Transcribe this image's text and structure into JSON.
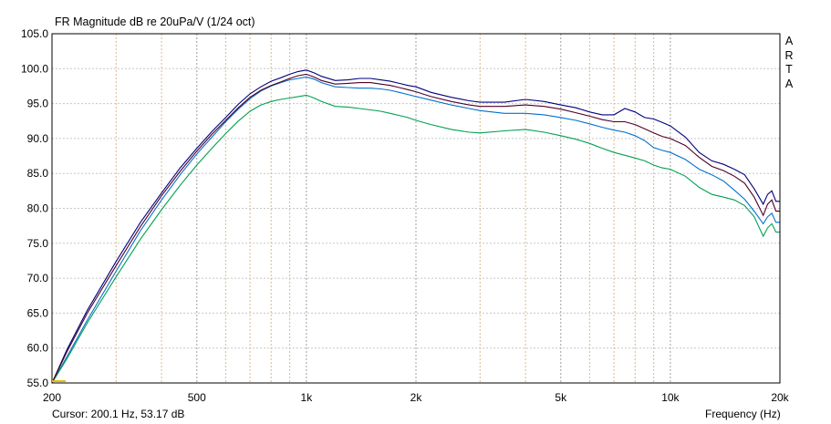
{
  "title": "FR Magnitude dB re 20uPa/V (1/24 oct)",
  "brand_letters": [
    "A",
    "R",
    "T",
    "A"
  ],
  "cursor_readout": "Cursor: 200.1 Hz, 53.17 dB",
  "chart_data": {
    "type": "line",
    "title": "FR Magnitude dB re 20uPa/V (1/24 oct)",
    "xlabel": "Frequency (Hz)",
    "ylabel": "",
    "x_scale": "log",
    "xlim": [
      200,
      20000
    ],
    "ylim": [
      55,
      105
    ],
    "grid": true,
    "x_ticks": [
      {
        "value": 200,
        "label": "200"
      },
      {
        "value": 500,
        "label": "500"
      },
      {
        "value": 1000,
        "label": "1k"
      },
      {
        "value": 2000,
        "label": "2k"
      },
      {
        "value": 5000,
        "label": "5k"
      },
      {
        "value": 10000,
        "label": "10k"
      },
      {
        "value": 20000,
        "label": "20k"
      }
    ],
    "y_ticks": [
      {
        "value": 55,
        "label": "55.0"
      },
      {
        "value": 60,
        "label": "60.0"
      },
      {
        "value": 65,
        "label": "65.0"
      },
      {
        "value": 70,
        "label": "70.0"
      },
      {
        "value": 75,
        "label": "75.0"
      },
      {
        "value": 80,
        "label": "80.0"
      },
      {
        "value": 85,
        "label": "85.0"
      },
      {
        "value": 90,
        "label": "90.0"
      },
      {
        "value": 95,
        "label": "95.0"
      },
      {
        "value": 100,
        "label": "100.0"
      },
      {
        "value": 105,
        "label": "105.0"
      }
    ],
    "minor_x_lines": [
      300,
      400,
      600,
      700,
      800,
      900,
      3000,
      4000,
      6000,
      7000,
      8000,
      9000
    ],
    "series": [
      {
        "color": "#0070d0",
        "points": [
          [
            200,
            55
          ],
          [
            220,
            58.8
          ],
          [
            250,
            64
          ],
          [
            300,
            71
          ],
          [
            350,
            76.8
          ],
          [
            400,
            81.2
          ],
          [
            450,
            84.8
          ],
          [
            500,
            87.8
          ],
          [
            550,
            90.2
          ],
          [
            600,
            92.4
          ],
          [
            650,
            94.2
          ],
          [
            700,
            95.7
          ],
          [
            750,
            96.8
          ],
          [
            800,
            97.5
          ],
          [
            850,
            98
          ],
          [
            900,
            98.4
          ],
          [
            950,
            98.6
          ],
          [
            1000,
            98.8
          ],
          [
            1050,
            98.5
          ],
          [
            1100,
            98
          ],
          [
            1200,
            97.4
          ],
          [
            1300,
            97.3
          ],
          [
            1400,
            97.2
          ],
          [
            1500,
            97.2
          ],
          [
            1600,
            97.1
          ],
          [
            1700,
            96.9
          ],
          [
            1800,
            96.6
          ],
          [
            1900,
            96.3
          ],
          [
            2000,
            96
          ],
          [
            2200,
            95.5
          ],
          [
            2500,
            94.8
          ],
          [
            2800,
            94.3
          ],
          [
            3000,
            94
          ],
          [
            3500,
            93.6
          ],
          [
            4000,
            93.6
          ],
          [
            4500,
            93.4
          ],
          [
            5000,
            93
          ],
          [
            5500,
            92.6
          ],
          [
            6000,
            92.1
          ],
          [
            6500,
            91.6
          ],
          [
            7000,
            91.2
          ],
          [
            7500,
            90.9
          ],
          [
            8000,
            90.4
          ],
          [
            8500,
            89.7
          ],
          [
            9000,
            88.7
          ],
          [
            9500,
            88.3
          ],
          [
            10000,
            88
          ],
          [
            11000,
            87
          ],
          [
            12000,
            85.6
          ],
          [
            13000,
            84.8
          ],
          [
            14000,
            83.9
          ],
          [
            15000,
            82.6
          ],
          [
            16000,
            81.3
          ],
          [
            17000,
            79.6
          ],
          [
            18000,
            77.8
          ],
          [
            18500,
            78.8
          ],
          [
            19000,
            79.3
          ],
          [
            19500,
            78
          ],
          [
            20000,
            78
          ]
        ]
      },
      {
        "color": "#000080",
        "points": [
          [
            200,
            55
          ],
          [
            220,
            59.8
          ],
          [
            250,
            65.4
          ],
          [
            300,
            72.4
          ],
          [
            350,
            78
          ],
          [
            400,
            82.2
          ],
          [
            450,
            85.8
          ],
          [
            500,
            88.6
          ],
          [
            550,
            91
          ],
          [
            600,
            93
          ],
          [
            650,
            94.9
          ],
          [
            700,
            96.4
          ],
          [
            750,
            97.4
          ],
          [
            800,
            98.2
          ],
          [
            850,
            98.7
          ],
          [
            900,
            99.2
          ],
          [
            950,
            99.6
          ],
          [
            1000,
            99.8
          ],
          [
            1050,
            99.4
          ],
          [
            1100,
            98.9
          ],
          [
            1200,
            98.3
          ],
          [
            1300,
            98.4
          ],
          [
            1400,
            98.6
          ],
          [
            1500,
            98.6
          ],
          [
            1600,
            98.4
          ],
          [
            1700,
            98.2
          ],
          [
            1800,
            97.9
          ],
          [
            1900,
            97.6
          ],
          [
            2000,
            97.4
          ],
          [
            2200,
            96.6
          ],
          [
            2500,
            95.9
          ],
          [
            2800,
            95.4
          ],
          [
            3000,
            95.2
          ],
          [
            3500,
            95.2
          ],
          [
            4000,
            95.6
          ],
          [
            4500,
            95.3
          ],
          [
            5000,
            94.8
          ],
          [
            5500,
            94.4
          ],
          [
            6000,
            93.8
          ],
          [
            6500,
            93.4
          ],
          [
            7000,
            93.4
          ],
          [
            7500,
            94.3
          ],
          [
            8000,
            93.8
          ],
          [
            8500,
            93
          ],
          [
            9000,
            92.8
          ],
          [
            9500,
            92.3
          ],
          [
            10000,
            91.8
          ],
          [
            11000,
            90.2
          ],
          [
            12000,
            88
          ],
          [
            13000,
            86.8
          ],
          [
            14000,
            86.3
          ],
          [
            15000,
            85.6
          ],
          [
            16000,
            84.8
          ],
          [
            17000,
            82.8
          ],
          [
            18000,
            80.6
          ],
          [
            18500,
            82
          ],
          [
            19000,
            82.5
          ],
          [
            19500,
            81
          ],
          [
            20000,
            81
          ]
        ]
      },
      {
        "color": "#00a050",
        "points": [
          [
            200,
            55
          ],
          [
            220,
            58.5
          ],
          [
            250,
            63.6
          ],
          [
            300,
            70.2
          ],
          [
            350,
            75.6
          ],
          [
            400,
            79.8
          ],
          [
            450,
            83.3
          ],
          [
            500,
            86.2
          ],
          [
            550,
            88.6
          ],
          [
            600,
            90.7
          ],
          [
            650,
            92.5
          ],
          [
            700,
            93.9
          ],
          [
            750,
            94.8
          ],
          [
            800,
            95.3
          ],
          [
            850,
            95.6
          ],
          [
            900,
            95.8
          ],
          [
            950,
            96
          ],
          [
            1000,
            96.2
          ],
          [
            1050,
            95.8
          ],
          [
            1100,
            95.3
          ],
          [
            1200,
            94.6
          ],
          [
            1300,
            94.5
          ],
          [
            1400,
            94.3
          ],
          [
            1500,
            94.1
          ],
          [
            1600,
            93.9
          ],
          [
            1700,
            93.6
          ],
          [
            1800,
            93.3
          ],
          [
            1900,
            93
          ],
          [
            2000,
            92.6
          ],
          [
            2200,
            92
          ],
          [
            2500,
            91.3
          ],
          [
            2800,
            90.9
          ],
          [
            3000,
            90.8
          ],
          [
            3500,
            91.1
          ],
          [
            4000,
            91.3
          ],
          [
            4500,
            90.9
          ],
          [
            5000,
            90.4
          ],
          [
            5500,
            89.9
          ],
          [
            6000,
            89.3
          ],
          [
            6500,
            88.6
          ],
          [
            7000,
            88
          ],
          [
            7500,
            87.6
          ],
          [
            8000,
            87.2
          ],
          [
            8500,
            86.8
          ],
          [
            9000,
            86.2
          ],
          [
            9500,
            85.8
          ],
          [
            10000,
            85.6
          ],
          [
            11000,
            84.6
          ],
          [
            12000,
            83
          ],
          [
            13000,
            82
          ],
          [
            14000,
            81.6
          ],
          [
            15000,
            81.2
          ],
          [
            16000,
            80.4
          ],
          [
            17000,
            78.8
          ],
          [
            18000,
            76
          ],
          [
            18500,
            77.2
          ],
          [
            19000,
            77.8
          ],
          [
            19500,
            76.6
          ],
          [
            20000,
            76.6
          ]
        ]
      },
      {
        "color": "#4e0022",
        "points": [
          [
            200,
            55
          ],
          [
            220,
            59.5
          ],
          [
            250,
            65
          ],
          [
            300,
            71.8
          ],
          [
            350,
            77.4
          ],
          [
            400,
            81.8
          ],
          [
            450,
            85.3
          ],
          [
            500,
            88.2
          ],
          [
            550,
            90.6
          ],
          [
            600,
            92.6
          ],
          [
            650,
            94.4
          ],
          [
            700,
            95.9
          ],
          [
            750,
            96.9
          ],
          [
            800,
            97.6
          ],
          [
            850,
            98.1
          ],
          [
            900,
            98.6
          ],
          [
            950,
            99
          ],
          [
            1000,
            99.2
          ],
          [
            1050,
            98.8
          ],
          [
            1100,
            98.3
          ],
          [
            1200,
            97.8
          ],
          [
            1300,
            97.9
          ],
          [
            1400,
            98
          ],
          [
            1500,
            98
          ],
          [
            1600,
            97.8
          ],
          [
            1700,
            97.6
          ],
          [
            1800,
            97.3
          ],
          [
            1900,
            97
          ],
          [
            2000,
            96.7
          ],
          [
            2200,
            96
          ],
          [
            2500,
            95.3
          ],
          [
            2800,
            94.8
          ],
          [
            3000,
            94.6
          ],
          [
            3500,
            94.6
          ],
          [
            4000,
            94.8
          ],
          [
            4500,
            94.6
          ],
          [
            5000,
            94.2
          ],
          [
            5500,
            93.7
          ],
          [
            6000,
            93.2
          ],
          [
            6500,
            92.7
          ],
          [
            7000,
            92.4
          ],
          [
            7500,
            92.4
          ],
          [
            8000,
            92
          ],
          [
            8500,
            91.4
          ],
          [
            9000,
            90.8
          ],
          [
            9500,
            90.3
          ],
          [
            10000,
            90
          ],
          [
            11000,
            89
          ],
          [
            12000,
            87.3
          ],
          [
            13000,
            86
          ],
          [
            14000,
            85.4
          ],
          [
            15000,
            84.6
          ],
          [
            16000,
            83.6
          ],
          [
            17000,
            81.6
          ],
          [
            18000,
            79
          ],
          [
            18500,
            80.6
          ],
          [
            19000,
            81.2
          ],
          [
            19500,
            79.6
          ],
          [
            20000,
            79.6
          ]
        ]
      }
    ]
  }
}
